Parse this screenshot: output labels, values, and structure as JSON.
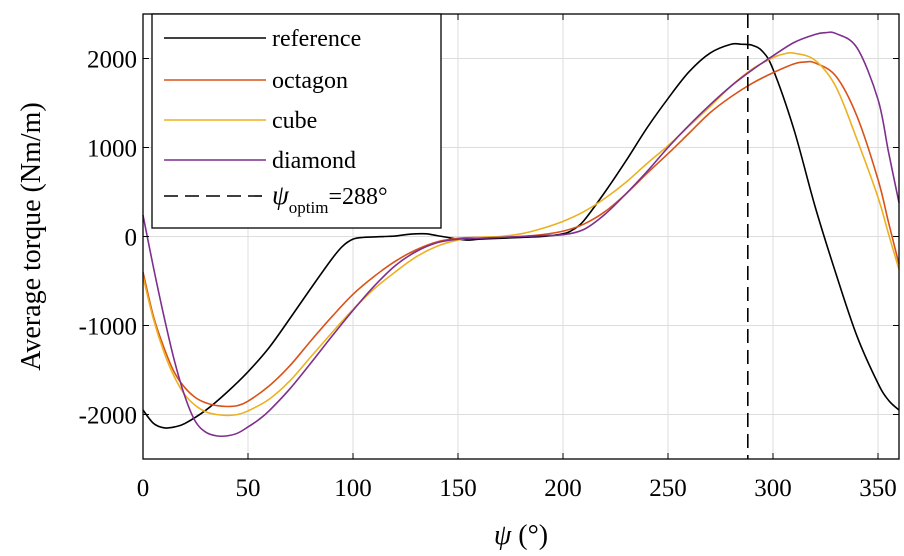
{
  "chart_data": {
    "type": "line",
    "xlabel_symbol": "ψ",
    "xlabel_unit": " (°)",
    "ylabel": "Average torque (Nm/m)",
    "xlim": [
      0,
      360
    ],
    "ylim": [
      -2500,
      2500
    ],
    "xticks": [
      0,
      50,
      100,
      150,
      200,
      250,
      300,
      350
    ],
    "yticks": [
      -2000,
      -1000,
      0,
      1000,
      2000
    ],
    "xtick_labels": [
      "0",
      "50",
      "100",
      "150",
      "200",
      "250",
      "300",
      "350"
    ],
    "ytick_labels": [
      "-2000",
      "-1000",
      "0",
      "1000",
      "2000"
    ],
    "grid": true,
    "legend_position": "top-left",
    "series": [
      {
        "name": "reference",
        "color": "#000000",
        "x": [
          0,
          5,
          10,
          15,
          20,
          30,
          40,
          50,
          60,
          70,
          80,
          90,
          95,
          100,
          105,
          110,
          115,
          120,
          125,
          130,
          135,
          140,
          145,
          150,
          155,
          160,
          165,
          170,
          175,
          180,
          190,
          200,
          205,
          210,
          220,
          230,
          240,
          250,
          260,
          270,
          280,
          285,
          290,
          295,
          300,
          310,
          320,
          330,
          340,
          350,
          355,
          360
        ],
        "y": [
          -1950,
          -2100,
          -2150,
          -2140,
          -2100,
          -1950,
          -1750,
          -1520,
          -1250,
          -920,
          -580,
          -250,
          -110,
          -30,
          -10,
          -5,
          0,
          5,
          20,
          30,
          30,
          10,
          -10,
          -30,
          -40,
          -30,
          -25,
          -20,
          -15,
          -10,
          0,
          30,
          80,
          180,
          500,
          850,
          1220,
          1550,
          1850,
          2060,
          2160,
          2160,
          2150,
          2080,
          1880,
          1200,
          340,
          -420,
          -1120,
          -1650,
          -1840,
          -1950
        ]
      },
      {
        "name": "octagon",
        "color": "#d95319",
        "x": [
          0,
          5,
          10,
          15,
          20,
          25,
          30,
          35,
          40,
          45,
          50,
          60,
          70,
          80,
          90,
          100,
          110,
          120,
          130,
          140,
          150,
          160,
          170,
          180,
          190,
          200,
          210,
          220,
          230,
          240,
          250,
          260,
          270,
          280,
          290,
          300,
          310,
          315,
          320,
          330,
          340,
          350,
          355,
          360
        ],
        "y": [
          -400,
          -900,
          -1250,
          -1530,
          -1700,
          -1810,
          -1870,
          -1900,
          -1910,
          -1900,
          -1850,
          -1680,
          -1450,
          -1170,
          -900,
          -650,
          -450,
          -280,
          -150,
          -60,
          -20,
          -10,
          -5,
          0,
          20,
          60,
          140,
          280,
          480,
          710,
          930,
          1160,
          1390,
          1570,
          1720,
          1840,
          1940,
          1960,
          1950,
          1800,
          1350,
          640,
          160,
          -310
        ]
      },
      {
        "name": "cube",
        "color": "#edb120",
        "x": [
          0,
          5,
          10,
          15,
          20,
          25,
          30,
          35,
          40,
          45,
          50,
          60,
          70,
          80,
          90,
          100,
          110,
          120,
          130,
          140,
          150,
          160,
          170,
          180,
          190,
          200,
          210,
          220,
          230,
          240,
          250,
          260,
          270,
          280,
          290,
          300,
          305,
          310,
          320,
          330,
          340,
          350,
          355,
          360
        ],
        "y": [
          -450,
          -930,
          -1300,
          -1580,
          -1780,
          -1900,
          -1970,
          -2000,
          -2010,
          -2000,
          -1960,
          -1830,
          -1620,
          -1350,
          -1080,
          -820,
          -590,
          -400,
          -230,
          -110,
          -40,
          -10,
          0,
          30,
          90,
          170,
          280,
          430,
          610,
          820,
          1020,
          1240,
          1460,
          1690,
          1880,
          2010,
          2050,
          2060,
          1980,
          1680,
          1090,
          440,
          30,
          -370
        ]
      },
      {
        "name": "diamond",
        "color": "#7e2f8e",
        "x": [
          0,
          5,
          10,
          15,
          20,
          25,
          30,
          35,
          40,
          45,
          50,
          55,
          60,
          70,
          80,
          90,
          100,
          110,
          120,
          130,
          140,
          150,
          160,
          170,
          180,
          190,
          200,
          210,
          220,
          230,
          240,
          250,
          260,
          270,
          280,
          290,
          300,
          310,
          320,
          325,
          330,
          340,
          350,
          355,
          360
        ],
        "y": [
          240,
          -350,
          -900,
          -1400,
          -1800,
          -2080,
          -2200,
          -2240,
          -2240,
          -2210,
          -2140,
          -2060,
          -1960,
          -1710,
          -1420,
          -1120,
          -830,
          -560,
          -330,
          -170,
          -70,
          -30,
          -20,
          -10,
          0,
          10,
          20,
          80,
          250,
          480,
          730,
          1000,
          1250,
          1480,
          1690,
          1870,
          2030,
          2180,
          2270,
          2290,
          2280,
          2120,
          1540,
          950,
          380
        ]
      }
    ],
    "vline": {
      "x": 288,
      "label_sub": "optim",
      "label_value": "=288°",
      "color": "#000000"
    }
  }
}
